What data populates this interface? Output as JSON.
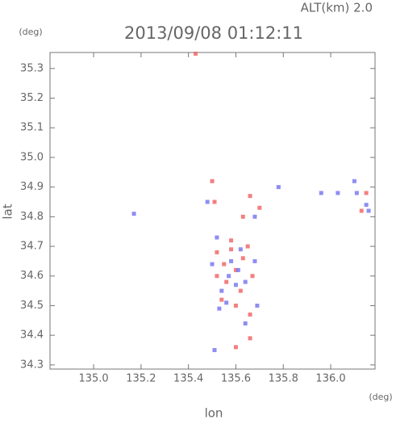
{
  "chart_data": {
    "type": "scatter",
    "title": "2013/09/08 01:12:11",
    "subtitle": "ALT(km) 2.0",
    "ylabel": "lat",
    "xlabel": "lon",
    "y_unit": "(deg)",
    "x_unit": "(deg)",
    "xlim": [
      134.816,
      136.187
    ],
    "ylim": [
      34.286,
      35.354
    ],
    "xticks": [
      {
        "value": 135,
        "label": "135.0"
      },
      135.2,
      135.4,
      135.6,
      135.8,
      {
        "value": 136,
        "label": "136.0"
      }
    ],
    "yticks": [
      34.3,
      34.4,
      34.5,
      34.6,
      34.7,
      34.8,
      34.9,
      {
        "value": 35,
        "label": "35.0"
      },
      35.1,
      35.2,
      35.3
    ],
    "series": [
      {
        "color": "#f06a6a",
        "x": [
          135.5,
          135.51,
          135.66,
          135.63,
          135.7,
          135.58,
          135.52,
          135.55,
          135.6,
          135.63,
          135.56,
          135.62,
          135.67,
          135.54,
          135.66,
          135.66,
          135.6,
          136.15,
          136.13,
          135.52,
          135.58,
          135.65,
          135.6,
          135.43
        ],
        "values": [
          34.92,
          34.85,
          34.87,
          34.8,
          34.83,
          34.72,
          34.68,
          34.64,
          34.62,
          34.66,
          34.58,
          34.55,
          34.6,
          34.52,
          34.47,
          34.39,
          34.36,
          34.88,
          34.82,
          34.6,
          34.69,
          34.7,
          34.5,
          35.35
        ]
      },
      {
        "color": "#7a7af0",
        "x": [
          135.48,
          135.17,
          135.68,
          135.52,
          135.58,
          135.62,
          135.5,
          135.57,
          135.64,
          135.54,
          135.6,
          135.68,
          135.56,
          135.53,
          135.69,
          135.64,
          135.51,
          136.1,
          136.11,
          136.15,
          136.16,
          136.03,
          135.96,
          135.78,
          135.61
        ],
        "values": [
          34.85,
          34.81,
          34.8,
          34.73,
          34.65,
          34.69,
          34.64,
          34.6,
          34.58,
          34.55,
          34.57,
          34.65,
          34.51,
          34.49,
          34.5,
          34.44,
          34.35,
          34.92,
          34.88,
          34.84,
          34.82,
          34.88,
          34.88,
          34.9,
          34.62
        ]
      }
    ]
  }
}
